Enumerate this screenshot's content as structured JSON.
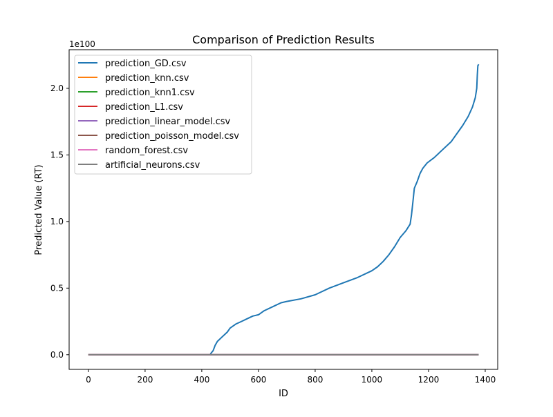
{
  "chart_data": {
    "type": "line",
    "title": "Comparison of Prediction Results",
    "xlabel": "ID",
    "ylabel": "Predicted Value (RT)",
    "y_offset_text": "1e100",
    "y_scale_factor": 1e+100,
    "xlim": [
      -68,
      1444
    ],
    "ylim": [
      -0.11,
      2.29
    ],
    "x_ticks": [
      0,
      200,
      400,
      600,
      800,
      1000,
      1200,
      1400
    ],
    "x_tick_labels": [
      "0",
      "200",
      "400",
      "600",
      "800",
      "1000",
      "1200",
      "1400"
    ],
    "y_ticks": [
      0.0,
      0.5,
      1.0,
      1.5,
      2.0
    ],
    "y_tick_labels": [
      "0.0",
      "0.5",
      "1.0",
      "1.5",
      "2.0"
    ],
    "grid": false,
    "legend_position": "top-left",
    "series": [
      {
        "name": "prediction_GD.csv",
        "color": "#1f77b4",
        "points": [
          [
            0,
            0
          ],
          [
            430,
            0
          ],
          [
            432,
            0.01
          ],
          [
            440,
            0.03
          ],
          [
            447,
            0.07
          ],
          [
            455,
            0.1
          ],
          [
            470,
            0.13
          ],
          [
            490,
            0.17
          ],
          [
            500,
            0.2
          ],
          [
            520,
            0.23
          ],
          [
            540,
            0.25
          ],
          [
            560,
            0.27
          ],
          [
            580,
            0.29
          ],
          [
            600,
            0.3
          ],
          [
            620,
            0.33
          ],
          [
            650,
            0.36
          ],
          [
            680,
            0.39
          ],
          [
            700,
            0.4
          ],
          [
            750,
            0.42
          ],
          [
            800,
            0.45
          ],
          [
            820,
            0.47
          ],
          [
            850,
            0.5
          ],
          [
            900,
            0.54
          ],
          [
            950,
            0.58
          ],
          [
            1000,
            0.63
          ],
          [
            1020,
            0.66
          ],
          [
            1040,
            0.7
          ],
          [
            1060,
            0.75
          ],
          [
            1080,
            0.81
          ],
          [
            1100,
            0.88
          ],
          [
            1120,
            0.93
          ],
          [
            1135,
            0.98
          ],
          [
            1140,
            1.05
          ],
          [
            1145,
            1.15
          ],
          [
            1150,
            1.25
          ],
          [
            1160,
            1.3
          ],
          [
            1170,
            1.36
          ],
          [
            1180,
            1.4
          ],
          [
            1195,
            1.44
          ],
          [
            1220,
            1.48
          ],
          [
            1250,
            1.54
          ],
          [
            1280,
            1.6
          ],
          [
            1300,
            1.66
          ],
          [
            1320,
            1.72
          ],
          [
            1340,
            1.79
          ],
          [
            1355,
            1.86
          ],
          [
            1365,
            1.93
          ],
          [
            1370,
            2.0
          ],
          [
            1372,
            2.1
          ],
          [
            1374,
            2.17
          ],
          [
            1377,
            2.18
          ]
        ]
      },
      {
        "name": "prediction_knn.csv",
        "color": "#ff7f0e",
        "points": [
          [
            0,
            0
          ],
          [
            1377,
            0
          ]
        ]
      },
      {
        "name": "prediction_knn1.csv",
        "color": "#2ca02c",
        "points": [
          [
            0,
            0
          ],
          [
            1377,
            0
          ]
        ]
      },
      {
        "name": "prediction_L1.csv",
        "color": "#d62728",
        "points": [
          [
            0,
            0
          ],
          [
            1377,
            0
          ]
        ]
      },
      {
        "name": "prediction_linear_model.csv",
        "color": "#9467bd",
        "points": [
          [
            0,
            0
          ],
          [
            1377,
            0
          ]
        ]
      },
      {
        "name": "prediction_poisson_model.csv",
        "color": "#8c564b",
        "points": [
          [
            0,
            0
          ],
          [
            1377,
            0
          ]
        ]
      },
      {
        "name": "random_forest.csv",
        "color": "#e377c2",
        "points": [
          [
            0,
            0
          ],
          [
            1377,
            0
          ]
        ]
      },
      {
        "name": "artificial_neurons.csv",
        "color": "#7f7f7f",
        "points": [
          [
            0,
            0
          ],
          [
            1377,
            0
          ]
        ]
      }
    ]
  }
}
